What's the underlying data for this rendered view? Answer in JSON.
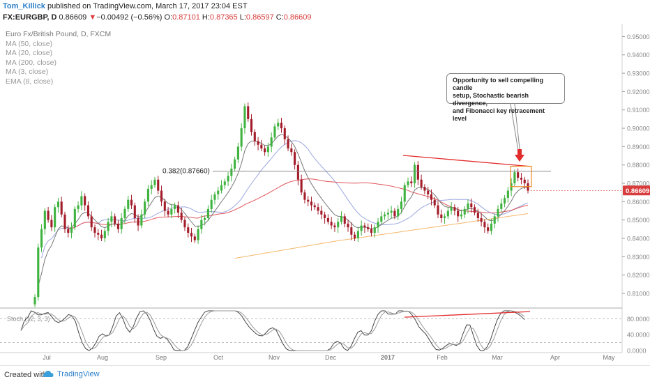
{
  "header": {
    "author": "Tom_Killick",
    "published": " published on TradingView.com, March 17, 2017 23:04 EST",
    "symbol": "FX:EURGBP, D",
    "price": "0.86609",
    "change_arrow": "▼",
    "change": "−0.00492 (−0.56%)",
    "open_label": "O:",
    "open": "0.87101",
    "high_label": "H:",
    "high": "0.87365",
    "low_label": "L:",
    "low": "0.86597",
    "close_label": "C:",
    "close": "0.86609"
  },
  "legend": {
    "title": "Euro Fx/British Pound, D, FXCM",
    "items": [
      "MA (50, close)",
      "MA (20, close)",
      "MA (200, close)",
      "MA (3, close)",
      "EMA (8, close)"
    ]
  },
  "annotation": {
    "text_lines": [
      "Opportunity to sell compelling candle",
      "setup, Stochastic bearish divergence,",
      "and Fibonacci key retracement level"
    ]
  },
  "fib_label": "0.382(0.87660)",
  "price_badge": "0.86609",
  "stoch_label": "Stoch (12, 3, 3)",
  "footer": {
    "created": "Created with",
    "brand": "TradingView"
  },
  "colors": {
    "bull": "#3fb33f",
    "bear": "#a31c2a",
    "ma50": "#e0555a",
    "ma20": "#9aa6e0",
    "ma200": "#f5b86b",
    "ema8": "#777777",
    "red_line": "#e22b2b",
    "orange": "#f08a24",
    "badge": "#d83c3c"
  },
  "chart_data": [
    {
      "type": "candlestick",
      "title": "Euro Fx/British Pound, D, FXCM",
      "y_ticks": [
        "0.95000",
        "0.94000",
        "0.93000",
        "0.92000",
        "0.91000",
        "0.90000",
        "0.89000",
        "0.88000",
        "0.87000",
        "0.86000",
        "0.85000",
        "0.84000",
        "0.83000",
        "0.82000",
        "0.81000"
      ],
      "x_ticks": [
        "Jul",
        "Aug",
        "Sep",
        "Oct",
        "Nov",
        "Dec",
        "2017",
        "Feb",
        "Mar",
        "Apr",
        "May"
      ],
      "ylim": [
        0.802,
        0.957
      ],
      "fib_level": 0.8766,
      "last_close": 0.86609,
      "series_closes": [
        0.808,
        0.835,
        0.845,
        0.855,
        0.85,
        0.846,
        0.857,
        0.86,
        0.853,
        0.845,
        0.843,
        0.846,
        0.856,
        0.858,
        0.863,
        0.858,
        0.852,
        0.846,
        0.843,
        0.842,
        0.84,
        0.844,
        0.849,
        0.852,
        0.848,
        0.845,
        0.851,
        0.856,
        0.861,
        0.858,
        0.851,
        0.847,
        0.853,
        0.86,
        0.867,
        0.869,
        0.872,
        0.866,
        0.86,
        0.855,
        0.853,
        0.856,
        0.858,
        0.854,
        0.85,
        0.846,
        0.843,
        0.841,
        0.839,
        0.845,
        0.85,
        0.851,
        0.856,
        0.861,
        0.864,
        0.866,
        0.869,
        0.871,
        0.874,
        0.878,
        0.883,
        0.89,
        0.9,
        0.912,
        0.905,
        0.898,
        0.893,
        0.891,
        0.889,
        0.887,
        0.89,
        0.895,
        0.901,
        0.903,
        0.9,
        0.894,
        0.889,
        0.887,
        0.88,
        0.872,
        0.865,
        0.861,
        0.86,
        0.858,
        0.857,
        0.855,
        0.853,
        0.851,
        0.849,
        0.847,
        0.846,
        0.849,
        0.852,
        0.848,
        0.846,
        0.842,
        0.84,
        0.844,
        0.847,
        0.846,
        0.845,
        0.843,
        0.846,
        0.849,
        0.852,
        0.853,
        0.854,
        0.855,
        0.852,
        0.856,
        0.86,
        0.869,
        0.871,
        0.87,
        0.88,
        0.872,
        0.868,
        0.866,
        0.864,
        0.861,
        0.858,
        0.853,
        0.851,
        0.852,
        0.855,
        0.857,
        0.855,
        0.852,
        0.853,
        0.856,
        0.859,
        0.857,
        0.854,
        0.851,
        0.849,
        0.846,
        0.844,
        0.848,
        0.852,
        0.856,
        0.859,
        0.862,
        0.866,
        0.87,
        0.876,
        0.873,
        0.872,
        0.87,
        0.866
      ],
      "moving_averages": [
        "MA (50, close)",
        "MA (20, close)",
        "MA (200, close)",
        "MA (3, close)",
        "EMA (8, close)"
      ]
    },
    {
      "type": "line",
      "title": "Stoch (12, 3, 3)",
      "y_ticks": [
        "80.0000",
        "40.0000",
        "0.0000"
      ],
      "ylim": [
        0,
        100
      ]
    }
  ]
}
